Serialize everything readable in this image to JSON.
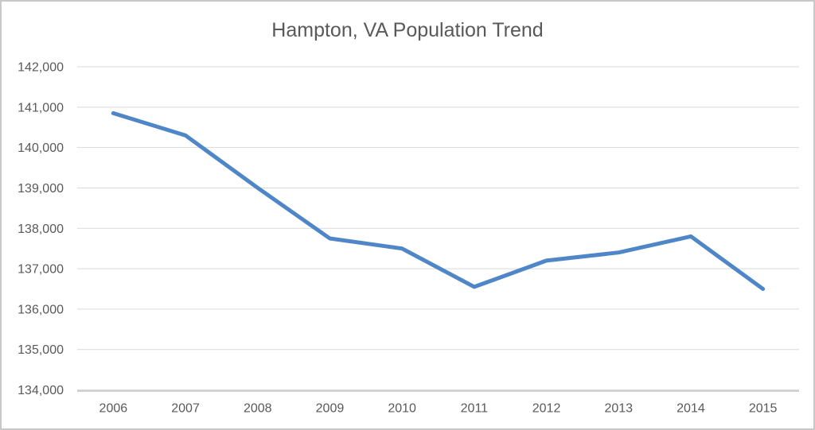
{
  "window": {
    "background": "#ffffff",
    "border_color": "#c8c8c8"
  },
  "chart_data": {
    "type": "line",
    "title": "Hampton, VA Population Trend",
    "xlabel": "",
    "ylabel": "",
    "categories": [
      "2006",
      "2007",
      "2008",
      "2009",
      "2010",
      "2011",
      "2012",
      "2013",
      "2014",
      "2015"
    ],
    "series": [
      {
        "name": "Population",
        "values": [
          140850,
          140300,
          139000,
          137750,
          137500,
          136550,
          137200,
          137400,
          137800,
          136500
        ],
        "color": "#4f86c8"
      }
    ],
    "ylim": [
      134000,
      142000
    ],
    "ytick_step": 1000,
    "ytick_labels": [
      "134,000",
      "135,000",
      "136,000",
      "137,000",
      "138,000",
      "139,000",
      "140,000",
      "141,000",
      "142,000"
    ],
    "grid": true,
    "legend": "none",
    "styles": {
      "grid_color": "#d9d9d9",
      "axis_color": "#bfbfbf",
      "tick_text_color": "#595959",
      "title_color": "#595959",
      "line_width": 5
    }
  }
}
